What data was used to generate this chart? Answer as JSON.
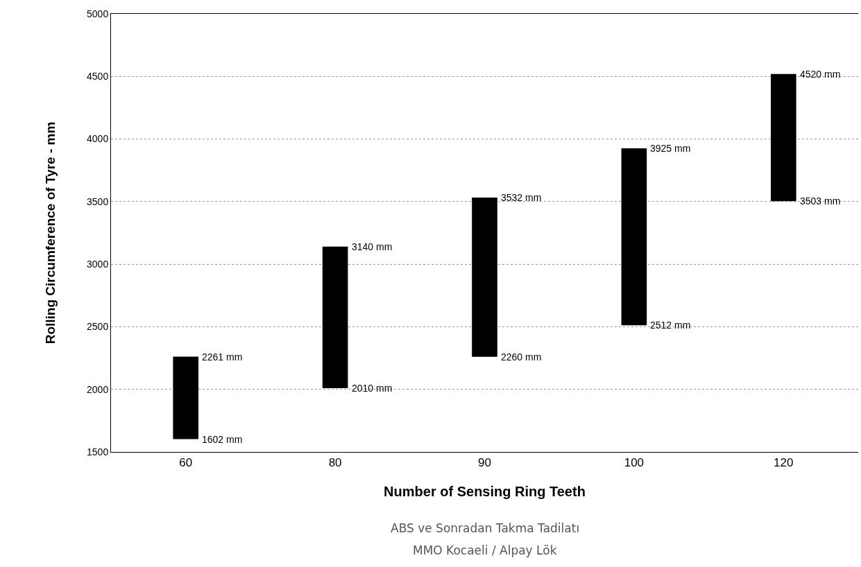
{
  "chart_data": {
    "type": "bar",
    "xlabel": "Number of Sensing Ring Teeth",
    "ylabel": "Rolling Circumference of Tyre - mm",
    "categories": [
      "60",
      "80",
      "90",
      "100",
      "120"
    ],
    "base": [
      1602,
      2010,
      2260,
      2512,
      3503
    ],
    "values": [
      659,
      1130,
      1272,
      1413,
      1017
    ],
    "color": "#000000",
    "ylim": [
      1500,
      5000
    ],
    "yticks": [
      1500,
      2000,
      2500,
      3000,
      3500,
      4000,
      4500,
      5000
    ],
    "grid": "y",
    "annotations": [
      {
        "text": "2261 mm",
        "x": "60",
        "y": 2261
      },
      {
        "text": "1602 mm",
        "x": "60",
        "y": 1602
      },
      {
        "text": "3140 mm",
        "x": "80",
        "y": 3140
      },
      {
        "text": "2010 mm",
        "x": "80",
        "y": 2010
      },
      {
        "text": "3532 mm",
        "x": "90",
        "y": 3532
      },
      {
        "text": "2260 mm",
        "x": "90",
        "y": 2260
      },
      {
        "text": "3925 mm",
        "x": "100",
        "y": 3925
      },
      {
        "text": "2512 mm",
        "x": "100",
        "y": 2512
      },
      {
        "text": "4520 mm",
        "x": "120",
        "y": 4520
      },
      {
        "text": "3503 mm",
        "x": "120",
        "y": 3503
      },
      "ABS ve Sonradan Takma Tadilatı",
      "MMO Kocaeli / Alpay Lök"
    ]
  }
}
